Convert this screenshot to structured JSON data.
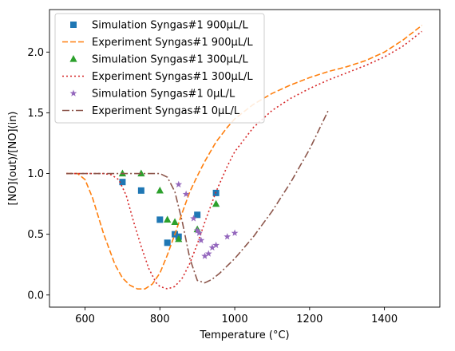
{
  "chart_data": {
    "type": "line",
    "title": "",
    "xlabel": "Temperature (°C)",
    "ylabel": "[NO](out)/[NO](in)",
    "xlim": [
      505,
      1548
    ],
    "ylim": [
      -0.1,
      2.35
    ],
    "xticks": [
      600,
      800,
      1000,
      1200,
      1400
    ],
    "yticks": [
      0.0,
      0.5,
      1.0,
      1.5,
      2.0
    ],
    "xtick_labels": [
      "600",
      "800",
      "1000",
      "1200",
      "1400"
    ],
    "ytick_labels": [
      "0.0",
      "0.5",
      "1.0",
      "1.5",
      "2.0"
    ],
    "grid": false,
    "legend_position": "top-left",
    "series": [
      {
        "name": "Simulation Syngas#1 900μL/L",
        "kind": "scatter",
        "marker": "square",
        "color": "#1f77b4",
        "x": [
          700,
          750,
          800,
          820,
          840,
          850,
          900,
          950
        ],
        "y": [
          0.93,
          0.86,
          0.62,
          0.43,
          0.5,
          0.48,
          0.66,
          0.84
        ]
      },
      {
        "name": "Experiment Syngas#1 900μL/L",
        "kind": "line",
        "dash": "dashed",
        "color": "#ff7f0e",
        "x": [
          550,
          580,
          600,
          620,
          650,
          680,
          700,
          720,
          740,
          760,
          780,
          800,
          820,
          840,
          860,
          880,
          900,
          920,
          950,
          980,
          1000,
          1050,
          1100,
          1150,
          1200,
          1250,
          1300,
          1350,
          1400,
          1450,
          1500
        ],
        "y": [
          1.0,
          1.0,
          0.95,
          0.8,
          0.5,
          0.25,
          0.14,
          0.08,
          0.05,
          0.05,
          0.09,
          0.18,
          0.33,
          0.5,
          0.68,
          0.85,
          0.98,
          1.1,
          1.26,
          1.38,
          1.45,
          1.57,
          1.66,
          1.73,
          1.79,
          1.84,
          1.88,
          1.93,
          2.0,
          2.1,
          2.22
        ]
      },
      {
        "name": "Simulation Syngas#1 300μL/L",
        "kind": "scatter",
        "marker": "triangle",
        "color": "#2ca02c",
        "x": [
          700,
          750,
          800,
          820,
          840,
          850,
          900,
          950
        ],
        "y": [
          1.0,
          1.0,
          0.86,
          0.62,
          0.6,
          0.46,
          0.54,
          0.75
        ]
      },
      {
        "name": "Experiment Syngas#1 300μL/L",
        "kind": "line",
        "dash": "dotted",
        "color": "#d62728",
        "x": [
          550,
          600,
          650,
          670,
          690,
          710,
          730,
          750,
          770,
          790,
          800,
          820,
          840,
          860,
          880,
          900,
          920,
          950,
          980,
          1000,
          1050,
          1100,
          1150,
          1200,
          1250,
          1300,
          1350,
          1400,
          1450,
          1500
        ],
        "y": [
          1.0,
          1.0,
          1.0,
          0.99,
          0.95,
          0.82,
          0.6,
          0.4,
          0.22,
          0.1,
          0.07,
          0.05,
          0.07,
          0.14,
          0.26,
          0.42,
          0.6,
          0.85,
          1.06,
          1.18,
          1.38,
          1.52,
          1.62,
          1.7,
          1.77,
          1.83,
          1.89,
          1.96,
          2.05,
          2.17
        ]
      },
      {
        "name": "Simulation Syngas#1 0μL/L",
        "kind": "scatter",
        "marker": "star",
        "color": "#9467bd",
        "x": [
          850,
          870,
          890,
          900,
          905,
          910,
          920,
          930,
          940,
          950,
          980,
          1000
        ],
        "y": [
          0.91,
          0.83,
          0.63,
          0.53,
          0.51,
          0.45,
          0.32,
          0.34,
          0.39,
          0.41,
          0.48,
          0.51
        ]
      },
      {
        "name": "Experiment Syngas#1 0μL/L",
        "kind": "line",
        "dash": "dashdot",
        "color": "#8c564b",
        "x": [
          550,
          600,
          700,
          800,
          820,
          840,
          860,
          880,
          900,
          920,
          940,
          960,
          1000,
          1050,
          1100,
          1150,
          1200,
          1250
        ],
        "y": [
          1.0,
          1.0,
          1.0,
          1.0,
          0.97,
          0.85,
          0.6,
          0.3,
          0.12,
          0.1,
          0.13,
          0.18,
          0.3,
          0.48,
          0.69,
          0.93,
          1.2,
          1.52
        ]
      }
    ]
  }
}
